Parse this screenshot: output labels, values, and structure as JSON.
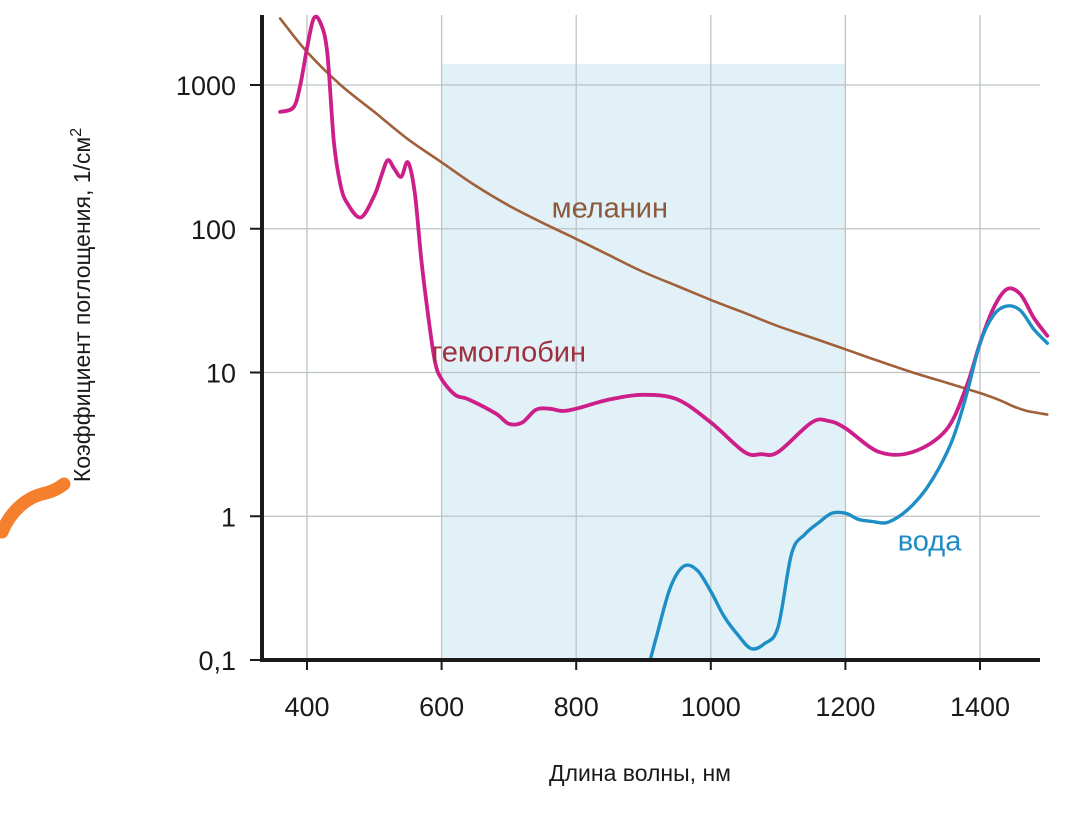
{
  "chart_data": {
    "type": "line",
    "title": "",
    "xlabel": "Длина волны, нм",
    "ylabel": "Коэффициент поглощения, 1/см",
    "ylabel_superscript": "2",
    "xlim": [
      350,
      1500
    ],
    "ylim": [
      0.1,
      3000
    ],
    "yscale": "log",
    "grid": true,
    "legend": "none",
    "x_ticks": [
      400,
      600,
      800,
      1000,
      1200,
      1400
    ],
    "x_tick_labels": [
      "400",
      "600",
      "800",
      "1000",
      "1200",
      "1400"
    ],
    "y_ticks": [
      0.1,
      1,
      10,
      100,
      1000
    ],
    "y_tick_labels": [
      "0,1",
      "1",
      "10",
      "100",
      "1000"
    ],
    "highlight_band": {
      "x": [
        600,
        1200
      ],
      "y_top": 1400,
      "color": "#e2f1f7"
    },
    "annotations": [
      {
        "series": "melanin",
        "text": "меланин",
        "x": 850,
        "y": 140,
        "color": "#8b5a3c"
      },
      {
        "series": "hemoglobin",
        "text": "гемоглобин",
        "x": 700,
        "y": 14,
        "color": "#9e2f3d"
      },
      {
        "series": "water",
        "text": "вода",
        "x": 1325,
        "y": 0.68,
        "color": "#1f8bc4"
      }
    ],
    "series": [
      {
        "id": "melanin",
        "color": "#a0603a",
        "x": [
          360,
          400,
          450,
          500,
          550,
          600,
          650,
          700,
          750,
          800,
          850,
          900,
          950,
          1000,
          1050,
          1100,
          1150,
          1200,
          1250,
          1300,
          1350,
          1400,
          1430,
          1450,
          1470,
          1500
        ],
        "y": [
          2900,
          1700,
          1000,
          650,
          420,
          290,
          200,
          145,
          110,
          85,
          65,
          50,
          40,
          32,
          26,
          21,
          17.5,
          14.5,
          12,
          10,
          8.5,
          7.2,
          6.4,
          5.8,
          5.4,
          5.1
        ]
      },
      {
        "id": "hemoglobin",
        "color": "#cc1f8a",
        "x": [
          360,
          380,
          390,
          400,
          410,
          420,
          430,
          440,
          450,
          460,
          480,
          500,
          510,
          520,
          530,
          540,
          550,
          560,
          570,
          580,
          590,
          600,
          620,
          640,
          680,
          700,
          720,
          740,
          760,
          780,
          800,
          850,
          900,
          950,
          1000,
          1050,
          1075,
          1100,
          1150,
          1175,
          1200,
          1250,
          1300,
          1350,
          1380,
          1400,
          1420,
          1440,
          1460,
          1480,
          1500
        ],
        "y": [
          650,
          700,
          1000,
          1800,
          2900,
          2700,
          1700,
          400,
          200,
          150,
          120,
          170,
          230,
          300,
          260,
          230,
          290,
          180,
          60,
          25,
          12,
          9,
          7,
          6.5,
          5.2,
          4.4,
          4.5,
          5.5,
          5.6,
          5.4,
          5.6,
          6.5,
          7,
          6.5,
          4.5,
          2.8,
          2.7,
          2.8,
          4.5,
          4.6,
          4.1,
          2.8,
          2.8,
          4,
          8,
          16,
          28,
          38,
          35,
          24,
          18
        ]
      },
      {
        "id": "water",
        "color": "#1e8fc6",
        "x": [
          910,
          920,
          940,
          960,
          980,
          1000,
          1020,
          1040,
          1060,
          1080,
          1100,
          1120,
          1140,
          1160,
          1180,
          1200,
          1220,
          1240,
          1260,
          1280,
          1300,
          1320,
          1340,
          1360,
          1380,
          1400,
          1420,
          1440,
          1460,
          1480,
          1500
        ],
        "y": [
          0.1,
          0.15,
          0.32,
          0.45,
          0.42,
          0.3,
          0.2,
          0.15,
          0.12,
          0.13,
          0.17,
          0.55,
          0.75,
          0.9,
          1.05,
          1.05,
          0.95,
          0.92,
          0.9,
          1,
          1.2,
          1.55,
          2.2,
          3.5,
          7,
          16,
          25,
          29,
          27,
          20,
          16
        ]
      }
    ]
  }
}
